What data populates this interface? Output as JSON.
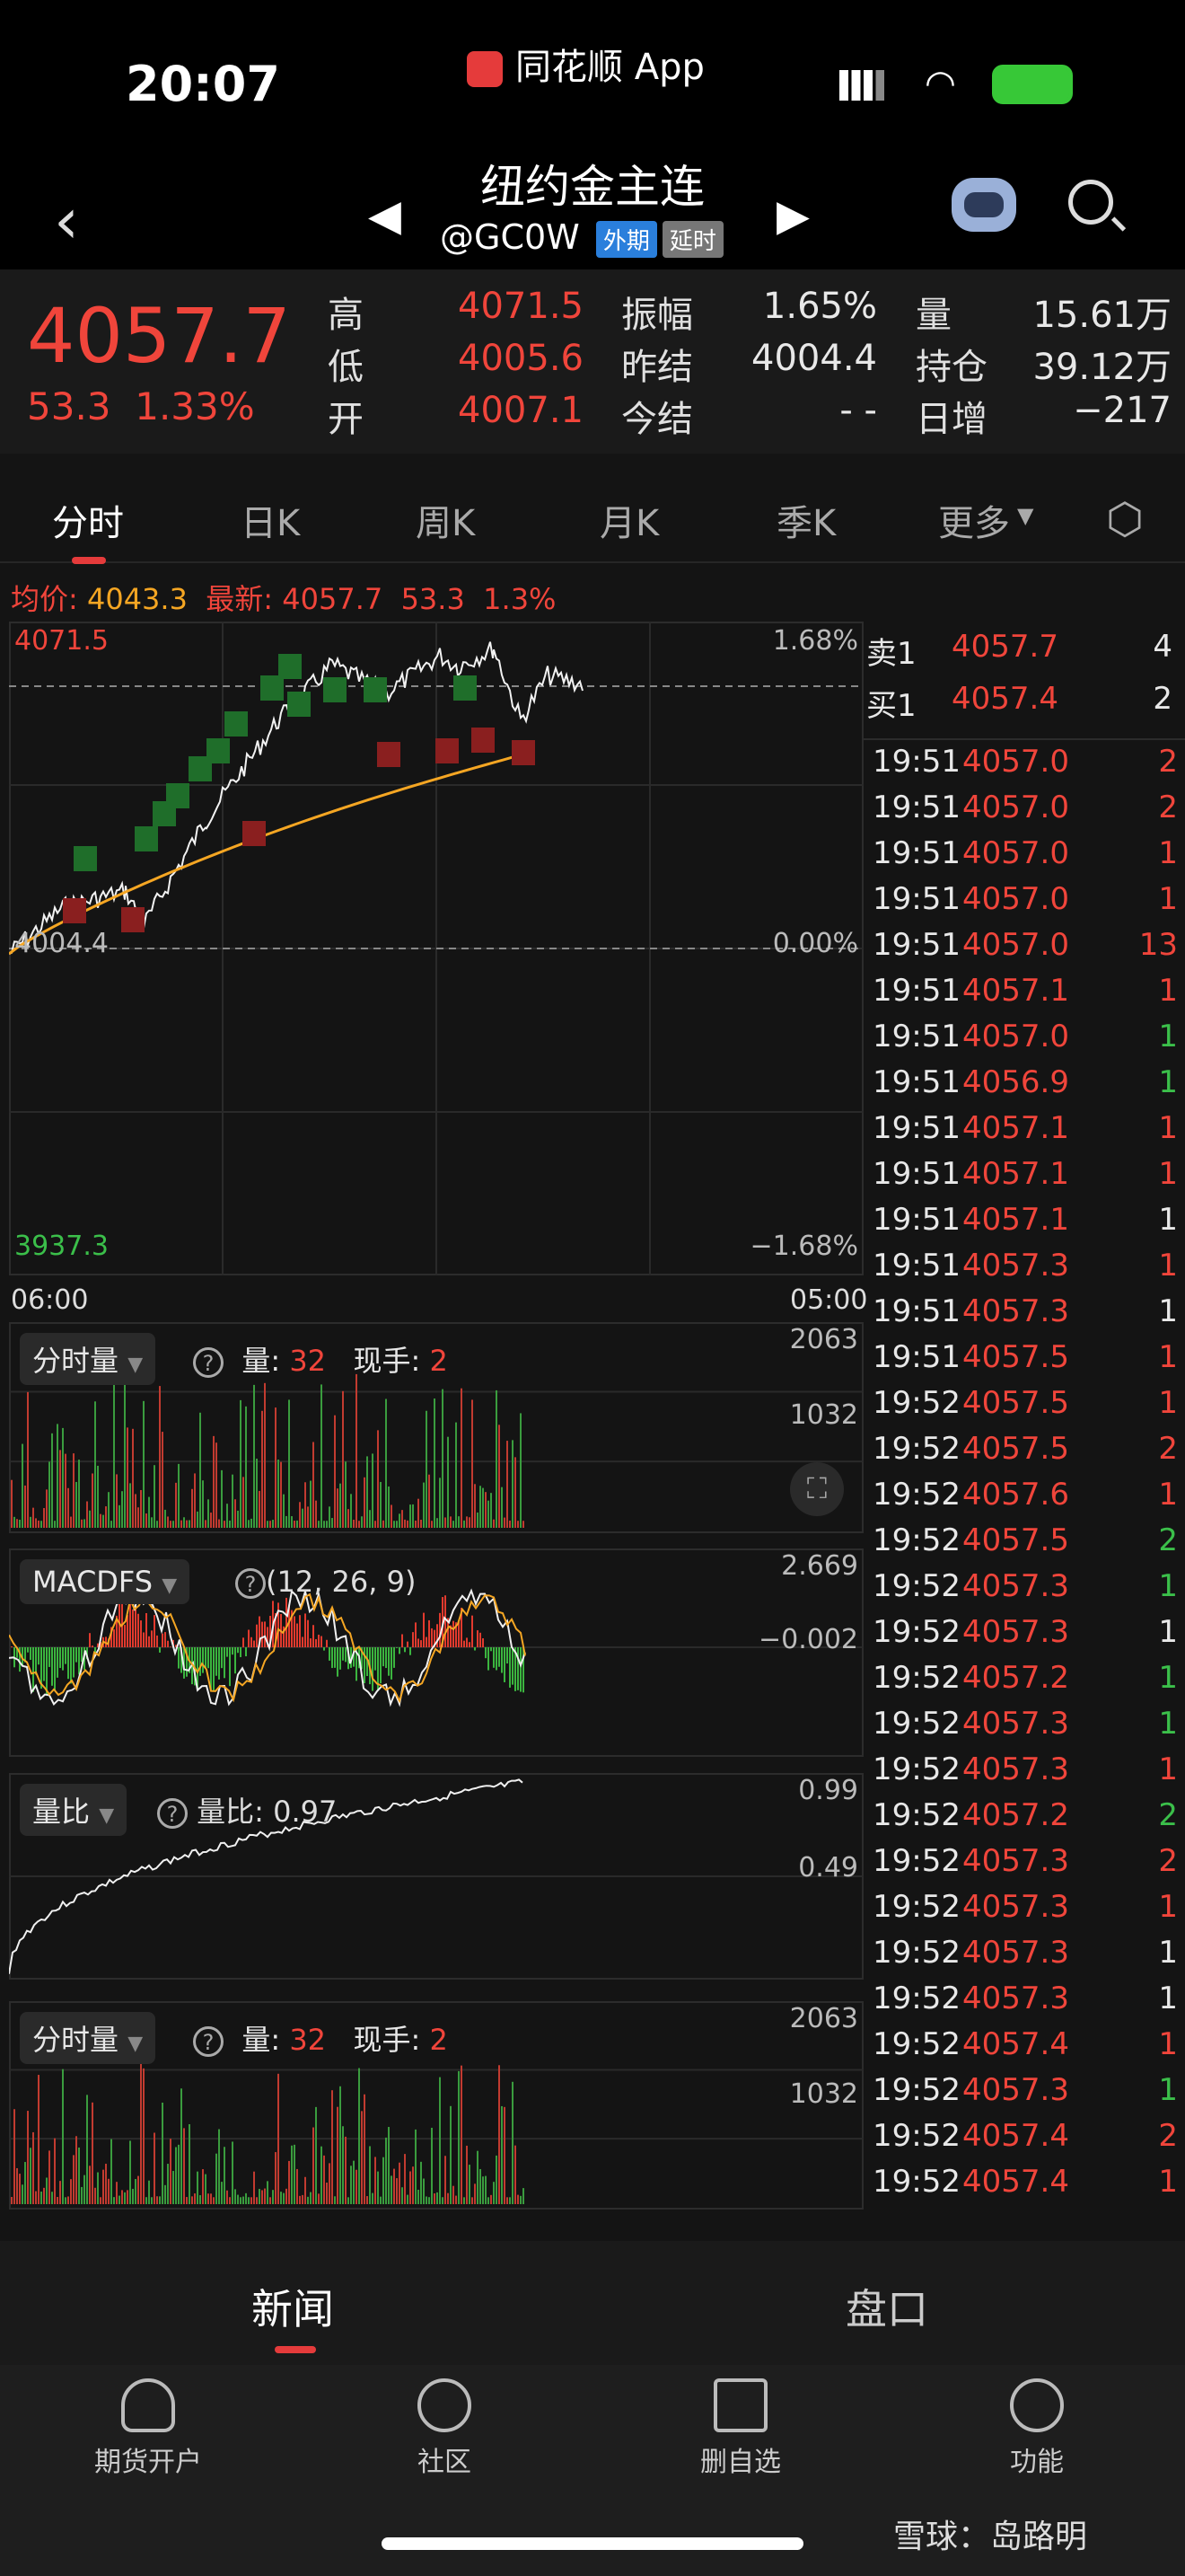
{
  "status": {
    "time": "20:07",
    "app_source": "同花顺 App"
  },
  "header": {
    "title": "纽约金主连",
    "code": "@GC0W",
    "tag_foreign": "外期",
    "tag_delay": "延时"
  },
  "quote": {
    "last": "4057.7",
    "change": "53.3",
    "change_pct": "1.33%",
    "cols": [
      [
        {
          "label": "高",
          "value": "4071.5",
          "color": "red"
        },
        {
          "label": "低",
          "value": "4005.6",
          "color": "red"
        },
        {
          "label": "开",
          "value": "4007.1",
          "color": "red"
        }
      ],
      [
        {
          "label": "振幅",
          "value": "1.65%",
          "color": "white"
        },
        {
          "label": "昨结",
          "value": "4004.4",
          "color": "white"
        },
        {
          "label": "今结",
          "value": "- -",
          "color": "white"
        }
      ],
      [
        {
          "label": "量",
          "value": "15.61万",
          "color": "white"
        },
        {
          "label": "持仓",
          "value": "39.12万",
          "color": "white"
        },
        {
          "label": "日增",
          "value": "−217",
          "color": "white"
        }
      ]
    ]
  },
  "tabs": [
    "分时",
    "日K",
    "周K",
    "月K",
    "季K",
    "更多"
  ],
  "info": {
    "avg_label": "均价:",
    "avg": "4043.3",
    "latest_label": "最新:",
    "latest": "4057.7",
    "chg": "53.3",
    "pct": "1.3%"
  },
  "price_chart": {
    "high": "4071.5",
    "pct_high": "1.68%",
    "pre": "4004.4",
    "pct_zero": "0.00%",
    "low": "3937.3",
    "pct_low": "−1.68%",
    "t_start": "06:00",
    "t_end": "05:00"
  },
  "vol1": {
    "name": "分时量",
    "q_label": "量:",
    "q": "32",
    "h_label": "现手:",
    "h": "2",
    "max": "2063",
    "mid": "1032"
  },
  "macd": {
    "name": "MACDFS",
    "params": "(12, 26, 9)",
    "max": "2.669",
    "mid": "−0.002"
  },
  "ratio": {
    "name": "量比",
    "label": "量比: 0.97",
    "max": "0.99",
    "mid": "0.49"
  },
  "vol2": {
    "name": "分时量",
    "q_label": "量:",
    "q": "32",
    "h_label": "现手:",
    "h": "2",
    "max": "2063",
    "mid": "1032"
  },
  "orderbook": [
    {
      "label": "卖1",
      "price": "4057.7",
      "qty": "4"
    },
    {
      "label": "买1",
      "price": "4057.4",
      "qty": "2"
    }
  ],
  "ticks": [
    [
      "19:51",
      "4057.0",
      "2",
      "red"
    ],
    [
      "19:51",
      "4057.0",
      "2",
      "red"
    ],
    [
      "19:51",
      "4057.0",
      "1",
      "red"
    ],
    [
      "19:51",
      "4057.0",
      "1",
      "red"
    ],
    [
      "19:51",
      "4057.0",
      "13",
      "red"
    ],
    [
      "19:51",
      "4057.1",
      "1",
      "red"
    ],
    [
      "19:51",
      "4057.0",
      "1",
      "green"
    ],
    [
      "19:51",
      "4056.9",
      "1",
      "green"
    ],
    [
      "19:51",
      "4057.1",
      "1",
      "red"
    ],
    [
      "19:51",
      "4057.1",
      "1",
      "red"
    ],
    [
      "19:51",
      "4057.1",
      "1",
      "white"
    ],
    [
      "19:51",
      "4057.3",
      "1",
      "red"
    ],
    [
      "19:51",
      "4057.3",
      "1",
      "white"
    ],
    [
      "19:51",
      "4057.5",
      "1",
      "red"
    ],
    [
      "19:52",
      "4057.5",
      "1",
      "red"
    ],
    [
      "19:52",
      "4057.5",
      "2",
      "red"
    ],
    [
      "19:52",
      "4057.6",
      "1",
      "red"
    ],
    [
      "19:52",
      "4057.5",
      "2",
      "green"
    ],
    [
      "19:52",
      "4057.3",
      "1",
      "green"
    ],
    [
      "19:52",
      "4057.3",
      "1",
      "white"
    ],
    [
      "19:52",
      "4057.2",
      "1",
      "green"
    ],
    [
      "19:52",
      "4057.3",
      "1",
      "green"
    ],
    [
      "19:52",
      "4057.3",
      "1",
      "red"
    ],
    [
      "19:52",
      "4057.2",
      "2",
      "green"
    ],
    [
      "19:52",
      "4057.3",
      "2",
      "red"
    ],
    [
      "19:52",
      "4057.3",
      "1",
      "red"
    ],
    [
      "19:52",
      "4057.3",
      "1",
      "white"
    ],
    [
      "19:52",
      "4057.3",
      "1",
      "white"
    ],
    [
      "19:52",
      "4057.4",
      "1",
      "red"
    ],
    [
      "19:52",
      "4057.3",
      "1",
      "green"
    ],
    [
      "19:52",
      "4057.4",
      "2",
      "red"
    ],
    [
      "19:52",
      "4057.4",
      "1",
      "red"
    ]
  ],
  "news_tabs": [
    "新闻",
    "盘口"
  ],
  "nav": [
    "期货开户",
    "社区",
    "删自选",
    "功能"
  ],
  "watermark": "雪球：岛路明"
}
